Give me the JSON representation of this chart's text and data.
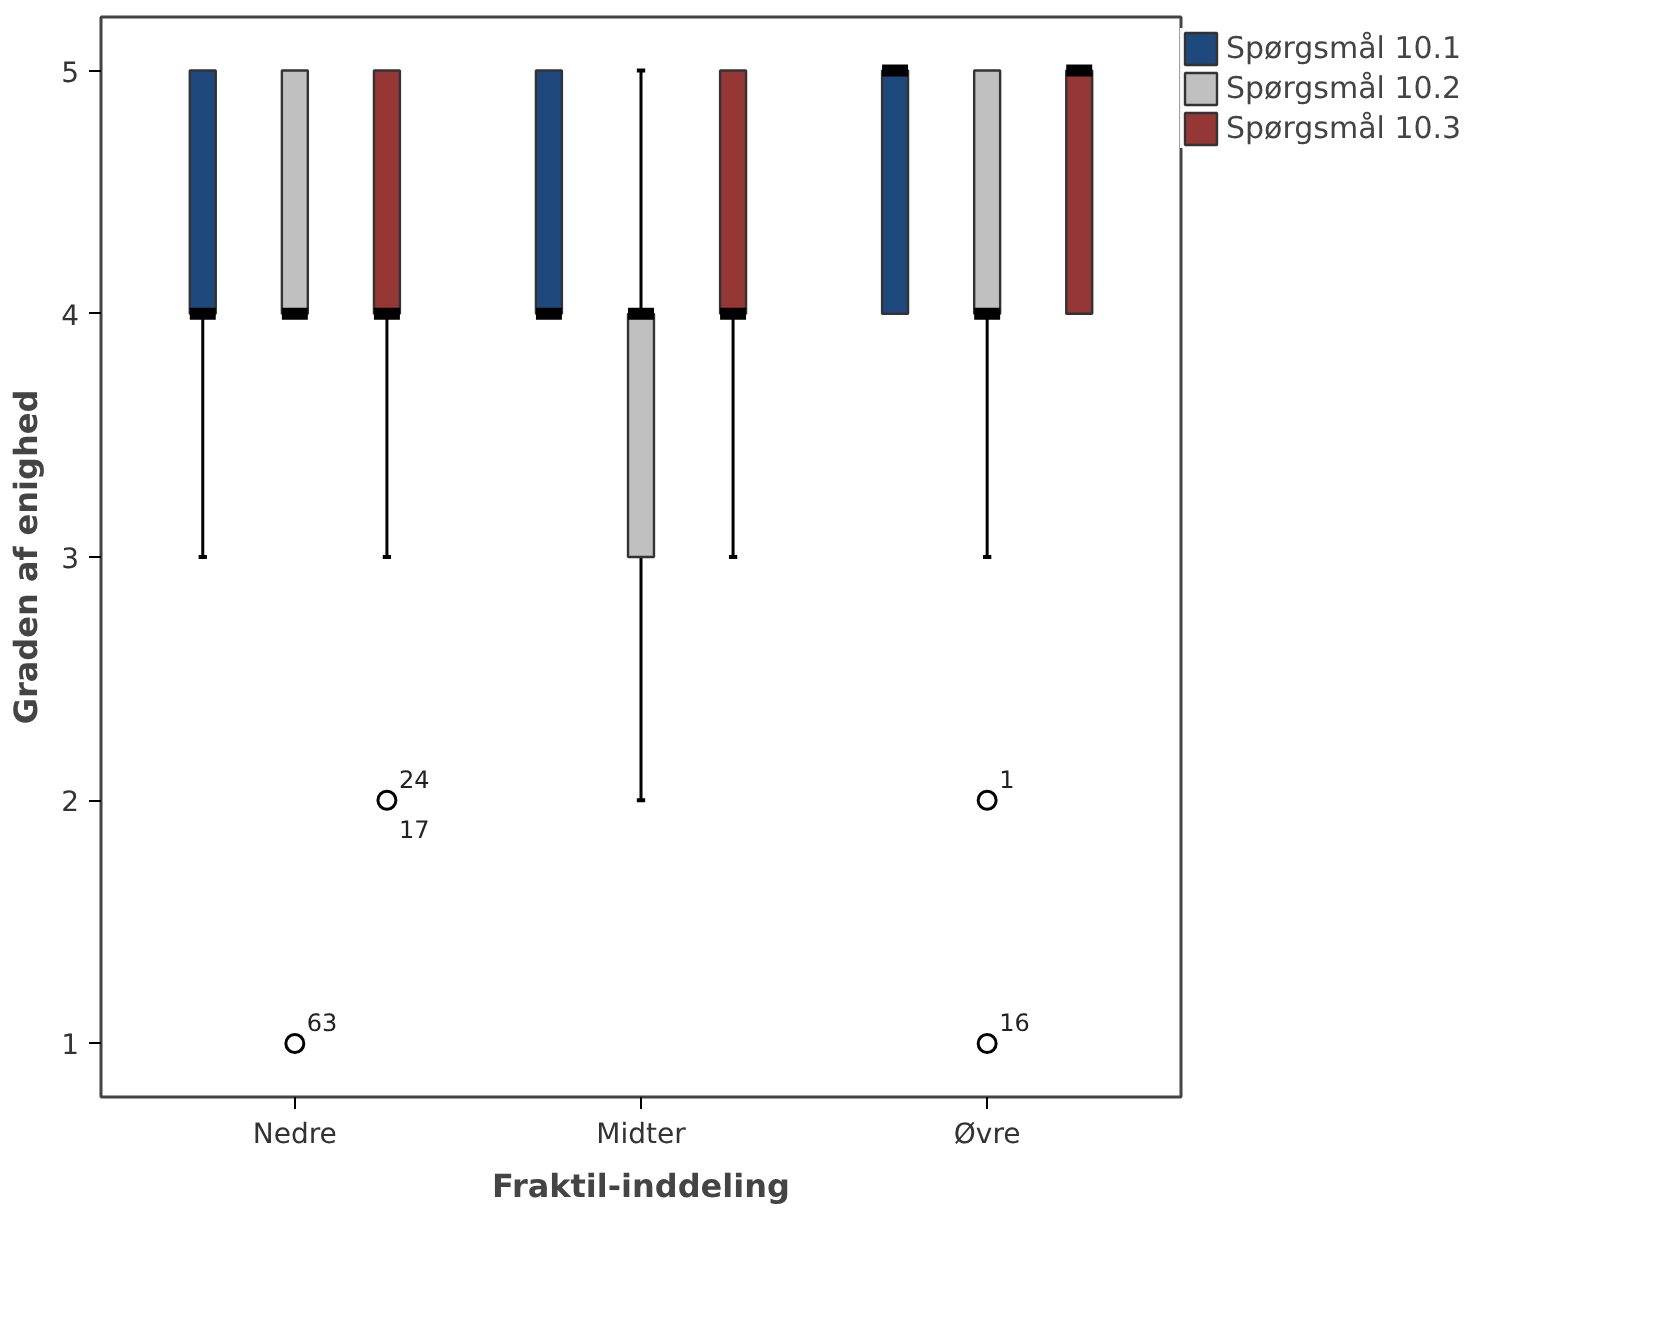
{
  "chart_data": {
    "type": "box",
    "xlabel": "Fraktil-inddeling",
    "ylabel": "Graden af enighed",
    "categories": [
      "Nedre",
      "Midter",
      "Øvre"
    ],
    "ylim": [
      0.78,
      5.22
    ],
    "yticks": [
      1,
      2,
      3,
      4,
      5
    ],
    "grid": false,
    "legend": "top right",
    "series": [
      {
        "name": "Spørgsmål 10.1",
        "color": "#1f497d",
        "boxes": [
          {
            "low": 3,
            "q1": 4,
            "median": 4,
            "q3": 5,
            "high": 5
          },
          {
            "low": 4,
            "q1": 4,
            "median": 4,
            "q3": 5,
            "high": 5
          },
          {
            "low": 4,
            "q1": 4,
            "median": 5,
            "q3": 5,
            "high": 5
          }
        ]
      },
      {
        "name": "Spørgsmål 10.2",
        "color": "#c0c0c0",
        "boxes": [
          {
            "low": 4,
            "q1": 4,
            "median": 4,
            "q3": 5,
            "high": 5,
            "outliers": [
              1
            ]
          },
          {
            "low": 2,
            "q1": 3,
            "median": 4,
            "q3": 4,
            "high": 5
          },
          {
            "low": 3,
            "q1": 4,
            "median": 4,
            "q3": 5,
            "high": 5,
            "outliers": [
              2,
              1
            ]
          }
        ]
      },
      {
        "name": "Spørgsmål 10.3",
        "color": "#953735",
        "boxes": [
          {
            "low": 3,
            "q1": 4,
            "median": 4,
            "q3": 5,
            "high": 5,
            "outliers": [
              2
            ]
          },
          {
            "low": 3,
            "q1": 4,
            "median": 4,
            "q3": 5,
            "high": 5
          },
          {
            "low": 4,
            "q1": 4,
            "median": 5,
            "q3": 5,
            "high": 5
          }
        ]
      }
    ],
    "annotations": [
      "63",
      "1",
      "16",
      "24",
      "17"
    ]
  }
}
